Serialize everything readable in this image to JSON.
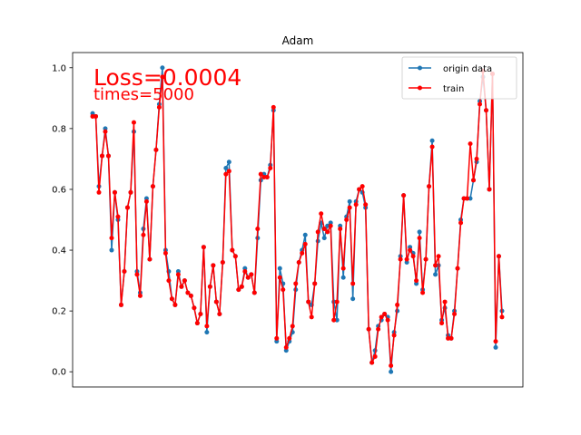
{
  "chart_data": {
    "type": "line",
    "title": "Adam",
    "xlabel": "",
    "ylabel": "",
    "ylim": [
      -0.05,
      1.05
    ],
    "yticks": [
      "0.0",
      "0.2",
      "0.4",
      "0.6",
      "0.8",
      "1.0"
    ],
    "x_ticks_shown": false,
    "grid": false,
    "legend_position": "top-right",
    "annotations": {
      "loss": "Loss=0.0004",
      "times": "times=5000"
    },
    "annotation_color": "#ff0000",
    "series": [
      {
        "name": "origin data",
        "color": "#1f77b4",
        "marker": "circle",
        "values": [
          0.85,
          0.84,
          0.61,
          0.71,
          0.8,
          0.71,
          0.4,
          0.59,
          0.5,
          0.22,
          0.33,
          0.54,
          0.59,
          0.79,
          0.33,
          0.26,
          0.47,
          0.57,
          0.37,
          0.61,
          0.73,
          0.88,
          1.0,
          0.4,
          0.33,
          0.24,
          0.22,
          0.33,
          0.28,
          0.3,
          0.26,
          0.25,
          0.21,
          0.16,
          0.19,
          0.41,
          0.13,
          0.28,
          0.35,
          0.23,
          0.19,
          0.36,
          0.67,
          0.69,
          0.4,
          0.38,
          0.27,
          0.28,
          0.34,
          0.31,
          0.32,
          0.26,
          0.44,
          0.63,
          0.65,
          0.64,
          0.68,
          0.86,
          0.1,
          0.34,
          0.29,
          0.07,
          0.1,
          0.13,
          0.27,
          0.36,
          0.4,
          0.45,
          0.23,
          0.22,
          0.29,
          0.43,
          0.49,
          0.44,
          0.48,
          0.49,
          0.23,
          0.17,
          0.48,
          0.31,
          0.51,
          0.56,
          0.24,
          0.56,
          0.6,
          0.59,
          0.54,
          0.14,
          0.03,
          0.07,
          0.15,
          0.17,
          0.19,
          0.18,
          0.0,
          0.13,
          0.2,
          0.38,
          0.58,
          0.36,
          0.41,
          0.39,
          0.29,
          0.46,
          0.27,
          0.37,
          0.61,
          0.76,
          0.32,
          0.35,
          0.17,
          0.21,
          0.12,
          0.11,
          0.2,
          0.34,
          0.5,
          0.57,
          0.57,
          0.57,
          0.63,
          0.69,
          0.89,
          0.97,
          0.86,
          0.6,
          0.98,
          0.08,
          0.38,
          0.2
        ],
        "marker_size": 2.5
      },
      {
        "name": "train",
        "color": "#ff0000",
        "marker": "circle",
        "values": [
          0.84,
          0.84,
          0.59,
          0.71,
          0.79,
          0.71,
          0.44,
          0.59,
          0.51,
          0.22,
          0.33,
          0.54,
          0.59,
          0.82,
          0.32,
          0.25,
          0.45,
          0.56,
          0.37,
          0.61,
          0.73,
          0.87,
          0.97,
          0.39,
          0.3,
          0.24,
          0.22,
          0.32,
          0.28,
          0.3,
          0.26,
          0.25,
          0.21,
          0.16,
          0.19,
          0.41,
          0.15,
          0.28,
          0.35,
          0.23,
          0.19,
          0.36,
          0.65,
          0.66,
          0.4,
          0.38,
          0.27,
          0.28,
          0.33,
          0.31,
          0.32,
          0.26,
          0.47,
          0.65,
          0.64,
          0.64,
          0.67,
          0.87,
          0.11,
          0.31,
          0.27,
          0.08,
          0.11,
          0.15,
          0.29,
          0.36,
          0.39,
          0.42,
          0.23,
          0.18,
          0.29,
          0.46,
          0.52,
          0.47,
          0.46,
          0.48,
          0.17,
          0.23,
          0.47,
          0.34,
          0.5,
          0.54,
          0.29,
          0.55,
          0.6,
          0.61,
          0.55,
          0.14,
          0.03,
          0.05,
          0.14,
          0.18,
          0.19,
          0.17,
          0.02,
          0.12,
          0.22,
          0.37,
          0.58,
          0.37,
          0.4,
          0.38,
          0.3,
          0.44,
          0.26,
          0.37,
          0.61,
          0.74,
          0.35,
          0.38,
          0.16,
          0.23,
          0.11,
          0.11,
          0.19,
          0.34,
          0.49,
          0.57,
          0.57,
          0.75,
          0.63,
          0.7,
          0.88,
          0.99,
          0.86,
          0.6,
          0.98,
          0.1,
          0.38,
          0.18
        ],
        "marker_size": 2.5
      }
    ]
  }
}
